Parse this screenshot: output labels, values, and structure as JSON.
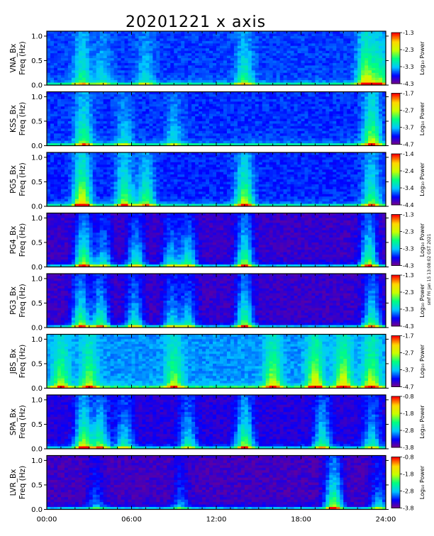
{
  "title": "20201221 x axis",
  "side_note": "smf Fri Jan 15 13:08:02 GST 2021",
  "chart_data": {
    "type": "heatmap",
    "title": "20201221 x axis",
    "xticks": [
      "00:00",
      "06:00",
      "12:00",
      "18:00",
      "24:00"
    ],
    "xlim": [
      0,
      24
    ],
    "yticks": [
      "0.0",
      "0.5",
      "1.0"
    ],
    "ylim": [
      0,
      1.1
    ],
    "ylabel_sub": "Freq (Hz)",
    "colorbar_label": "Log₁₀ Power",
    "colormap": [
      "#800080",
      "#0000ff",
      "#00c8ff",
      "#00ff80",
      "#c8ff00",
      "#ffd700",
      "#ff0000"
    ],
    "panels": [
      {
        "station": "VNA_Bx",
        "cb": [
          "-1.3",
          "-2.3",
          "-3.3",
          "-4.3"
        ],
        "activity": [
          [
            2.5,
            0.5
          ],
          [
            4,
            0.3
          ],
          [
            7,
            0.3
          ],
          [
            14,
            0.5
          ],
          [
            22.6,
            0.9
          ],
          [
            23.6,
            0.6
          ]
        ],
        "bg": 0.32
      },
      {
        "station": "KSS_Bx",
        "cb": [
          "-1.7",
          "-2.7",
          "-3.7",
          "-4.7"
        ],
        "activity": [
          [
            2.6,
            0.6
          ],
          [
            5.5,
            0.3
          ],
          [
            9,
            0.3
          ],
          [
            23,
            0.8
          ]
        ],
        "bg": 0.3
      },
      {
        "station": "PG5_Bx",
        "cb": [
          "-1.4",
          "-2.4",
          "-3.4",
          "-4.4"
        ],
        "activity": [
          [
            2.5,
            1.0
          ],
          [
            5.5,
            0.7
          ],
          [
            7,
            0.6
          ],
          [
            14,
            0.8
          ],
          [
            23,
            0.6
          ]
        ],
        "bg": 0.28
      },
      {
        "station": "PG4_Bx",
        "cb": [
          "-1.3",
          "-2.3",
          "-3.3",
          "-4.3"
        ],
        "activity": [
          [
            2.6,
            0.9
          ],
          [
            4,
            0.5
          ],
          [
            6.3,
            0.6
          ],
          [
            8.8,
            0.5
          ],
          [
            10,
            0.6
          ],
          [
            14,
            0.8
          ],
          [
            22.8,
            0.8
          ]
        ],
        "bg": 0.1
      },
      {
        "station": "PG3_Bx",
        "cb": [
          "-1.3",
          "-2.3",
          "-3.3",
          "-4.3"
        ],
        "activity": [
          [
            2.4,
            0.8
          ],
          [
            3.8,
            0.7
          ],
          [
            6.2,
            0.6
          ],
          [
            8.8,
            0.5
          ],
          [
            10,
            0.5
          ],
          [
            14,
            0.8
          ],
          [
            23,
            0.7
          ]
        ],
        "bg": 0.1
      },
      {
        "station": "JBS_Bx",
        "cb": [
          "-1.7",
          "-2.7",
          "-3.7",
          "-4.7"
        ],
        "activity": [
          [
            1,
            0.6
          ],
          [
            3,
            0.6
          ],
          [
            9,
            0.6
          ],
          [
            16,
            0.7
          ],
          [
            19,
            0.8
          ],
          [
            21,
            0.8
          ],
          [
            23,
            0.7
          ]
        ],
        "bg": 0.45
      },
      {
        "station": "SPA_Bx",
        "cb": [
          "-0.8",
          "-1.8",
          "-2.8",
          "-3.8"
        ],
        "activity": [
          [
            2.6,
            0.9
          ],
          [
            3.8,
            0.7
          ],
          [
            5.5,
            0.5
          ],
          [
            10,
            0.5
          ],
          [
            14,
            0.8
          ],
          [
            19.5,
            0.6
          ],
          [
            23,
            0.5
          ]
        ],
        "bg": 0.15
      },
      {
        "station": "LVR_Bx",
        "cb": [
          "-0.8",
          "-1.8",
          "-2.8",
          "-3.8"
        ],
        "activity": [
          [
            3.5,
            0.3
          ],
          [
            9.5,
            0.3
          ],
          [
            20.3,
            0.9
          ],
          [
            23.5,
            0.4
          ]
        ],
        "bg": 0.08
      }
    ]
  }
}
